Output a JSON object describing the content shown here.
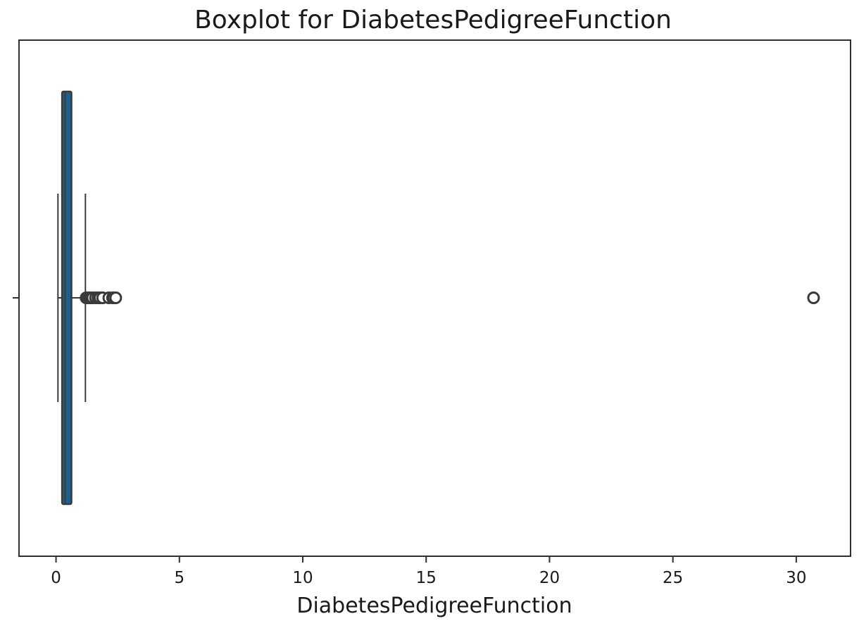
{
  "chart_data": {
    "type": "boxplot",
    "title": "Boxplot for DiabetesPedigreeFunction",
    "xlabel": "DiabetesPedigreeFunction",
    "ylabel": "",
    "xlim": [
      -1.5,
      32.2
    ],
    "xticks": [
      0,
      5,
      10,
      15,
      20,
      25,
      30
    ],
    "orientation": "horizontal",
    "grid": false,
    "box": {
      "whisker_low": 0.078,
      "q1": 0.244,
      "median": 0.3725,
      "q3": 0.626,
      "whisker_high": 1.191,
      "fill": "#1f5f8b",
      "edge": "#3a3a3a"
    },
    "outliers": [
      1.22,
      1.25,
      1.28,
      1.31,
      1.35,
      1.39,
      1.42,
      1.48,
      1.6,
      1.7,
      1.78,
      1.89,
      2.14,
      2.29,
      2.33,
      2.42,
      30.7
    ]
  }
}
